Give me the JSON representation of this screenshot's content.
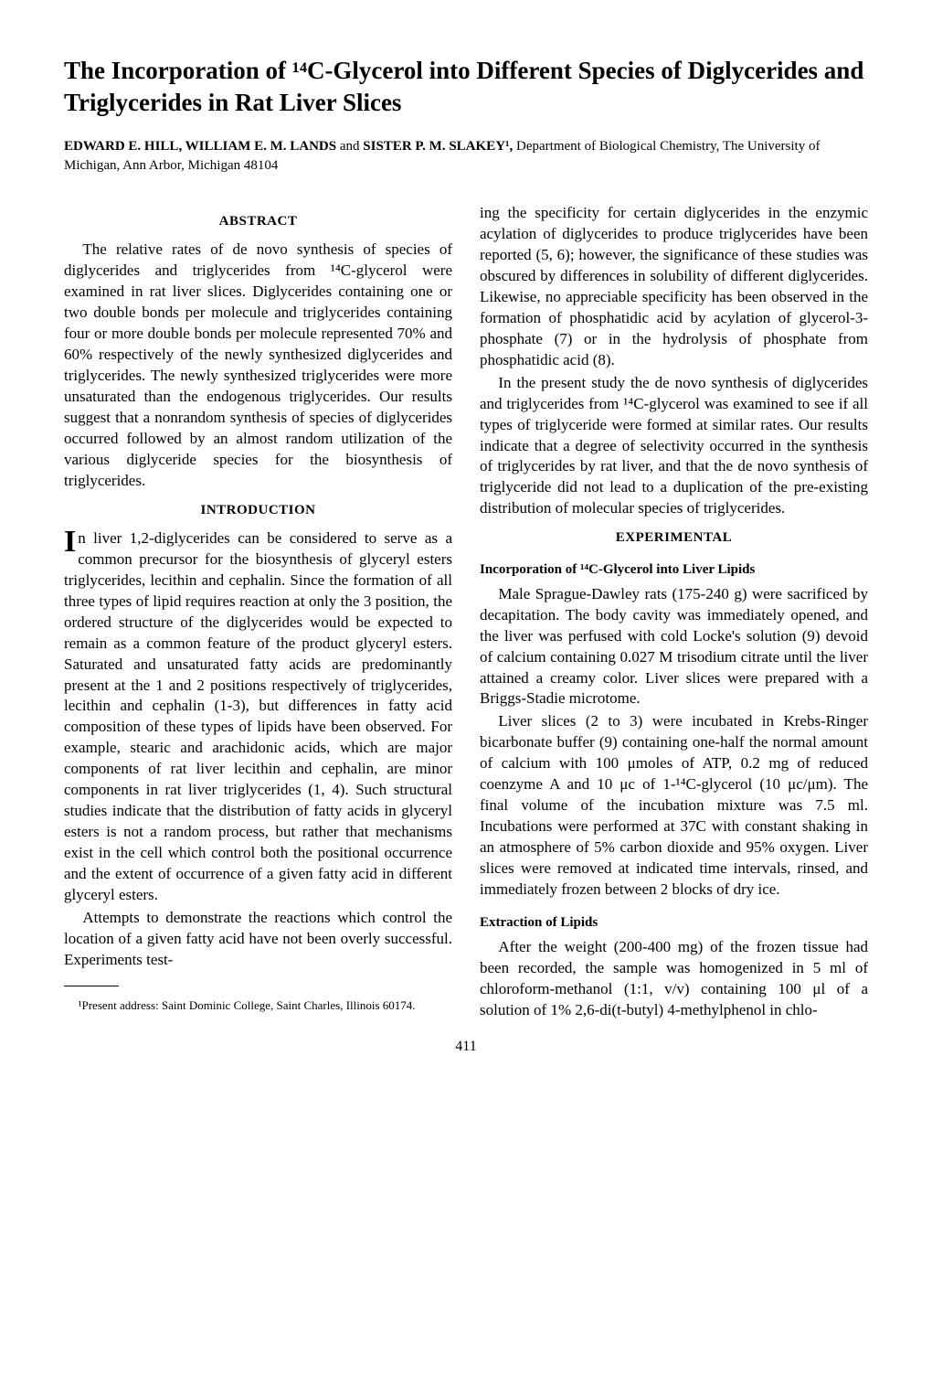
{
  "title": "The Incorporation of ¹⁴C-Glycerol into Different Species of Diglycerides and Triglycerides in Rat Liver Slices",
  "authors_bold": "EDWARD E. HILL, WILLIAM E. M. LANDS",
  "authors_and": " and ",
  "authors_bold2": "SISTER P. M. SLAKEY¹,",
  "authors_affil": " Department of Biological Chemistry, The University of Michigan, Ann Arbor, Michigan 48104",
  "headings": {
    "abstract": "ABSTRACT",
    "introduction": "INTRODUCTION",
    "experimental": "EXPERIMENTAL",
    "incorp": "Incorporation of ¹⁴C-Glycerol into Liver Lipids",
    "extraction": "Extraction of Lipids"
  },
  "abstract": "The relative rates of de novo synthesis of species of diglycerides and triglycerides from ¹⁴C-glycerol were examined in rat liver slices. Diglycerides containing one or two double bonds per molecule and triglycerides containing four or more double bonds per molecule represented 70% and 60% respectively of the newly synthesized diglycerides and triglycerides. The newly synthesized triglycerides were more unsaturated than the endogenous triglycerides. Our results suggest that a nonrandom synthesis of species of diglycerides occurred followed by an almost random utilization of the various diglyceride species for the biosynthesis of triglycerides.",
  "intro": {
    "p1": "In liver 1,2-diglycerides can be considered to serve as a common precursor for the biosynthesis of glyceryl esters triglycerides, lecithin and cephalin. Since the formation of all three types of lipid requires reaction at only the 3 position, the ordered structure of the diglycerides would be expected to remain as a common feature of the product glyceryl esters. Saturated and unsaturated fatty acids are predominantly present at the 1 and 2 positions respectively of triglycerides, lecithin and cephalin (1-3), but differences in fatty acid composition of these types of lipids have been observed. For example, stearic and arachidonic acids, which are major components of rat liver lecithin and cephalin, are minor components in rat liver triglycerides (1, 4). Such structural studies indicate that the distribution of fatty acids in glyceryl esters is not a random process, but rather that mechanisms exist in the cell which control both the positional occurrence and the extent of occurrence of a given fatty acid in different glyceryl esters.",
    "p2": "Attempts to demonstrate the reactions which control the location of a given fatty acid have not been overly successful. Experiments test-",
    "p3": "ing the specificity for certain diglycerides in the enzymic acylation of diglycerides to produce triglycerides have been reported (5, 6); however, the significance of these studies was obscured by differences in solubility of different diglycerides. Likewise, no appreciable specificity has been observed in the formation of phosphatidic acid by acylation of glycerol-3-phosphate (7) or in the hydrolysis of phosphate from phosphatidic acid (8).",
    "p4": "In the present study the de novo synthesis of diglycerides and triglycerides from ¹⁴C-glycerol was examined to see if all types of triglyceride were formed at similar rates. Our results indicate that a degree of selectivity occurred in the synthesis of triglycerides by rat liver, and that the de novo synthesis of triglyceride did not lead to a duplication of the pre-existing distribution of molecular species of triglycerides."
  },
  "exp": {
    "p1": "Male Sprague-Dawley rats (175-240 g) were sacrificed by decapitation. The body cavity was immediately opened, and the liver was perfused with cold Locke's solution (9) devoid of calcium containing 0.027 M trisodium citrate until the liver attained a creamy color. Liver slices were prepared with a Briggs-Stadie microtome.",
    "p2": "Liver slices (2 to 3) were incubated in Krebs-Ringer bicarbonate buffer (9) containing one-half the normal amount of calcium with 100 μmoles of ATP, 0.2 mg of reduced coenzyme A and 10 μc of 1-¹⁴C-glycerol (10 μc/μm). The final volume of the incubation mixture was 7.5 ml. Incubations were performed at 37C with constant shaking in an atmosphere of 5% carbon dioxide and 95% oxygen. Liver slices were removed at indicated time intervals, rinsed, and immediately frozen between 2 blocks of dry ice.",
    "p3": "After the weight (200-400 mg) of the frozen tissue had been recorded, the sample was homogenized in 5 ml of chloroform-methanol (1:1, v/v) containing 100 μl of a solution of 1% 2,6-di(t-butyl) 4-methylphenol in chlo-"
  },
  "footnote": "¹Present address: Saint Dominic College, Saint Charles, Illinois 60174.",
  "page_number": "411"
}
